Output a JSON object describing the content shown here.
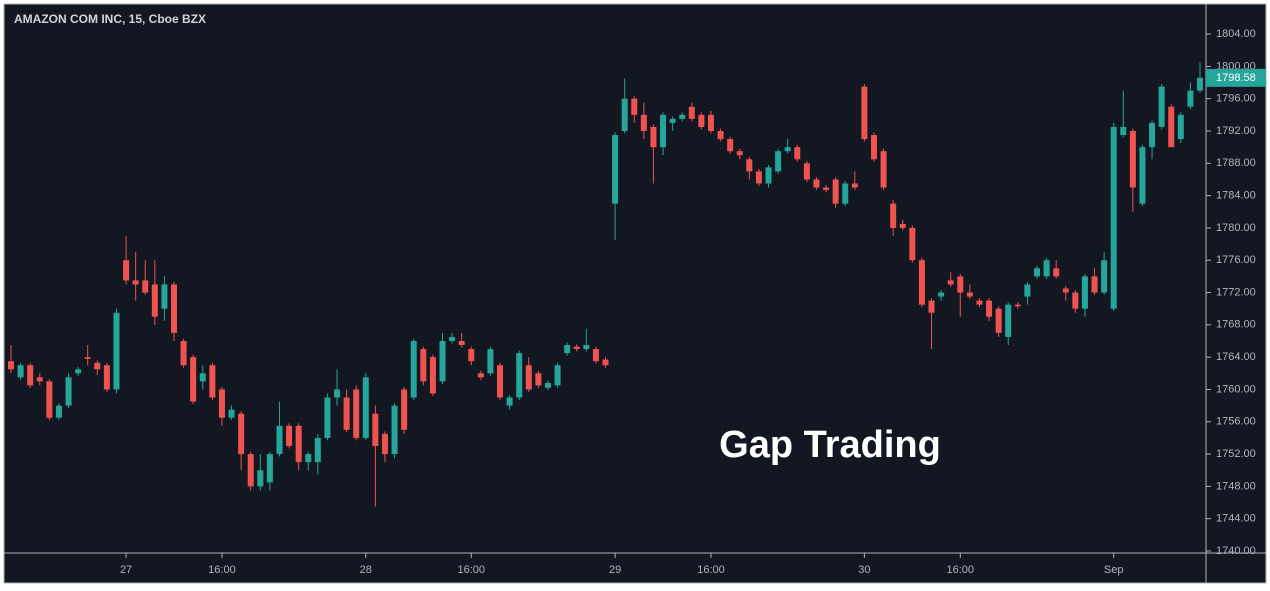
{
  "chart_data": {
    "type": "candlestick",
    "title": "AMAZON COM INC, 15, Cboe BZX",
    "annotation": "Gap Trading",
    "categories": [
      null,
      null,
      null,
      null,
      null,
      null,
      null,
      null,
      null,
      null,
      null,
      null,
      "27",
      null,
      null,
      null,
      null,
      null,
      null,
      null,
      null,
      null,
      "16:00",
      null,
      null,
      null,
      null,
      null,
      null,
      null,
      null,
      null,
      null,
      null,
      null,
      null,
      null,
      "28",
      null,
      null,
      null,
      null,
      null,
      null,
      null,
      null,
      null,
      null,
      "16:00",
      null,
      null,
      null,
      null,
      null,
      null,
      null,
      null,
      null,
      null,
      null,
      null,
      null,
      null,
      "29",
      null,
      null,
      null,
      null,
      null,
      null,
      null,
      null,
      null,
      "16:00",
      null,
      null,
      null,
      null,
      null,
      null,
      null,
      null,
      null,
      null,
      null,
      null,
      null,
      null,
      null,
      "30",
      null,
      null,
      null,
      null,
      null,
      null,
      null,
      null,
      null,
      "16:00",
      null,
      null,
      null,
      null,
      null,
      null,
      null,
      null,
      null,
      null,
      null,
      null,
      null,
      null,
      null,
      "Sep",
      null,
      null,
      null,
      null,
      null,
      null,
      null,
      null,
      null
    ],
    "series": [
      {
        "up_color": "#26a69a",
        "down_color": "#ef5350",
        "open": [
          1763.5,
          1761.5,
          1763,
          1761.5,
          1761,
          1756.5,
          1758,
          1762,
          1764,
          1763.3,
          1763,
          1760,
          1776,
          1773.5,
          1773.5,
          1773,
          1770,
          1773,
          1766,
          1764,
          1761,
          1763,
          1760,
          1756.5,
          1757,
          1752,
          1748,
          1748.5,
          1752,
          1755.5,
          1755.5,
          1751,
          1751,
          1754,
          1759,
          1759,
          1760,
          1754,
          1757,
          1754.5,
          1752,
          1760,
          1759,
          1765,
          1764,
          1761,
          1766,
          1766,
          1765,
          1762,
          1762,
          1763,
          1758,
          1759,
          1763,
          1762,
          1760.2,
          1760.5,
          1764.5,
          1765.3,
          1765,
          1765,
          1763.7,
          1783,
          1792,
          1796,
          1794,
          1792.5,
          1790,
          1793,
          1793.5,
          1795,
          1794,
          1794,
          1792,
          1791,
          1789.5,
          1788.5,
          1787,
          1785.5,
          1787,
          1789.5,
          1790,
          1788,
          1786,
          1785,
          1786,
          1783,
          1785.5,
          1797.5,
          1791.5,
          1789.5,
          1783,
          1780.5,
          1780,
          1776,
          1771,
          1771.5,
          1773.5,
          1774,
          1772,
          1771,
          1771,
          1770,
          1766.5,
          1770.5,
          1771.5,
          1774,
          1774,
          1775,
          1772.5,
          1772,
          1770,
          1774,
          1772,
          1770,
          1791.5,
          1792,
          1783,
          1790,
          1792.5,
          1795,
          1791,
          1795,
          1797
        ],
        "high": [
          1765.5,
          1763.3,
          1763.3,
          1762,
          1761.3,
          1758.3,
          1762,
          1762.8,
          1765.5,
          1763.6,
          1763.3,
          1770,
          1779,
          1777,
          1776,
          1776,
          1774,
          1773.3,
          1766.3,
          1764.3,
          1763,
          1763.3,
          1760.3,
          1758,
          1757.3,
          1752.3,
          1752,
          1752.3,
          1758.5,
          1755.8,
          1755.8,
          1752.3,
          1754.5,
          1759.5,
          1762.5,
          1760,
          1760.5,
          1762,
          1758,
          1754.8,
          1758.3,
          1760.3,
          1766.3,
          1765.3,
          1764.3,
          1767,
          1767,
          1767,
          1765.3,
          1762.3,
          1765.3,
          1763.3,
          1759.3,
          1764.8,
          1764,
          1762.3,
          1761.1,
          1763.3,
          1765.8,
          1765.6,
          1767.5,
          1765.3,
          1764,
          1791.8,
          1798.5,
          1796.3,
          1795.5,
          1792.8,
          1794.3,
          1793.8,
          1794.3,
          1795.5,
          1794.3,
          1794.5,
          1792.3,
          1791.3,
          1789.8,
          1788.8,
          1787.3,
          1787.8,
          1789.8,
          1791,
          1790.3,
          1788.3,
          1786.3,
          1785.3,
          1786.3,
          1785.8,
          1787,
          1797.8,
          1791.8,
          1789.8,
          1783.5,
          1781,
          1780.3,
          1776.3,
          1771.3,
          1772.3,
          1774.5,
          1774.3,
          1773,
          1771.3,
          1771.3,
          1770.3,
          1770.8,
          1770.8,
          1773.3,
          1775.3,
          1776.3,
          1776,
          1772.8,
          1772.3,
          1774.3,
          1775,
          1777,
          1793,
          1797,
          1792.3,
          1790.3,
          1793.3,
          1797.8,
          1795.3,
          1794.3,
          1798,
          1800.5
        ],
        "low": [
          1762,
          1761.2,
          1760.2,
          1760.5,
          1756.2,
          1756.2,
          1757.7,
          1761.7,
          1763,
          1761.8,
          1759.7,
          1759.5,
          1773,
          1771,
          1771.7,
          1768,
          1768.5,
          1766,
          1762.7,
          1758.2,
          1760,
          1758.7,
          1755.5,
          1756.2,
          1750,
          1747.5,
          1747.5,
          1747.5,
          1751.7,
          1752.7,
          1750,
          1750,
          1749.5,
          1753.7,
          1758,
          1754.7,
          1753.7,
          1753.7,
          1745.5,
          1751,
          1751.5,
          1754.5,
          1758.7,
          1760.5,
          1759.2,
          1760.7,
          1765.7,
          1765.2,
          1763,
          1761.2,
          1761.7,
          1758.7,
          1757.5,
          1758.7,
          1759.7,
          1760.2,
          1759.9,
          1760.2,
          1764.2,
          1764.7,
          1764.7,
          1763.2,
          1762.7,
          1778.5,
          1791.7,
          1793,
          1791,
          1785.5,
          1789,
          1792,
          1793.2,
          1793.2,
          1792.2,
          1791.7,
          1790.7,
          1789.2,
          1788.5,
          1786,
          1785.2,
          1785,
          1786.7,
          1789.2,
          1788.2,
          1785.7,
          1784.7,
          1784.4,
          1782.5,
          1782.7,
          1784.7,
          1790.7,
          1788.2,
          1784.7,
          1779,
          1779.7,
          1775.7,
          1770.2,
          1765,
          1771,
          1772.7,
          1769,
          1771.2,
          1770.2,
          1768.5,
          1766.5,
          1765.5,
          1770,
          1770.5,
          1773.7,
          1773.7,
          1773.7,
          1771,
          1769.5,
          1769,
          1771.7,
          1771.7,
          1769.7,
          1791.2,
          1782,
          1782.7,
          1788.5,
          1792.2,
          1790,
          1790.5,
          1794.7,
          1796.7
        ],
        "close": [
          1762.5,
          1763,
          1760.5,
          1761,
          1756.5,
          1758,
          1761.5,
          1762.5,
          1763.8,
          1762.5,
          1760,
          1769.5,
          1773.5,
          1773,
          1772,
          1769,
          1773,
          1767,
          1763,
          1758.5,
          1762,
          1759,
          1756.5,
          1757.5,
          1752,
          1748,
          1750,
          1752,
          1755.5,
          1753,
          1751,
          1752,
          1754,
          1759,
          1760,
          1755,
          1754,
          1761.5,
          1753,
          1752,
          1758,
          1755,
          1766,
          1761,
          1759.5,
          1766,
          1766.5,
          1765.5,
          1763.5,
          1761.5,
          1765,
          1759,
          1759,
          1764.5,
          1760,
          1760.5,
          1760.8,
          1763,
          1765.5,
          1765,
          1765.5,
          1763.5,
          1763,
          1791.5,
          1796,
          1794,
          1792,
          1790,
          1794,
          1793.5,
          1794,
          1793.5,
          1792.5,
          1792,
          1791,
          1789.5,
          1789,
          1787,
          1785.5,
          1787.5,
          1789.5,
          1790,
          1788.5,
          1786,
          1785,
          1784.7,
          1783,
          1785.5,
          1785,
          1791,
          1788.5,
          1785,
          1780,
          1780,
          1776,
          1770.5,
          1769.5,
          1772,
          1773,
          1772,
          1771.5,
          1770.5,
          1769,
          1767,
          1770.5,
          1770.3,
          1773,
          1775,
          1776,
          1774,
          1772,
          1770,
          1774,
          1772,
          1776,
          1792.5,
          1792.5,
          1785,
          1790,
          1793,
          1797.5,
          1790,
          1794,
          1797,
          1798.58
        ]
      }
    ],
    "ylim": [
      1739.75,
      1807.6
    ],
    "yticks": [
      {
        "value": 1740,
        "label": "1740.00"
      },
      {
        "value": 1744,
        "label": "1744.00"
      },
      {
        "value": 1748,
        "label": "1748.00"
      },
      {
        "value": 1752,
        "label": "1752.00"
      },
      {
        "value": 1756,
        "label": "1756.00"
      },
      {
        "value": 1760,
        "label": "1760.00"
      },
      {
        "value": 1764,
        "label": "1764.00"
      },
      {
        "value": 1768,
        "label": "1768.00"
      },
      {
        "value": 1772,
        "label": "1772.00"
      },
      {
        "value": 1776,
        "label": "1776.00"
      },
      {
        "value": 1780,
        "label": "1780.00"
      },
      {
        "value": 1784,
        "label": "1784.00"
      },
      {
        "value": 1788,
        "label": "1788.00"
      },
      {
        "value": 1792,
        "label": "1792.00"
      },
      {
        "value": 1796,
        "label": "1796.00"
      },
      {
        "value": 1800,
        "label": "1800.00"
      },
      {
        "value": 1804,
        "label": "1804.00"
      }
    ],
    "last_price_label": "1798.58",
    "last_price_color": "#26a69a",
    "grid": false
  }
}
